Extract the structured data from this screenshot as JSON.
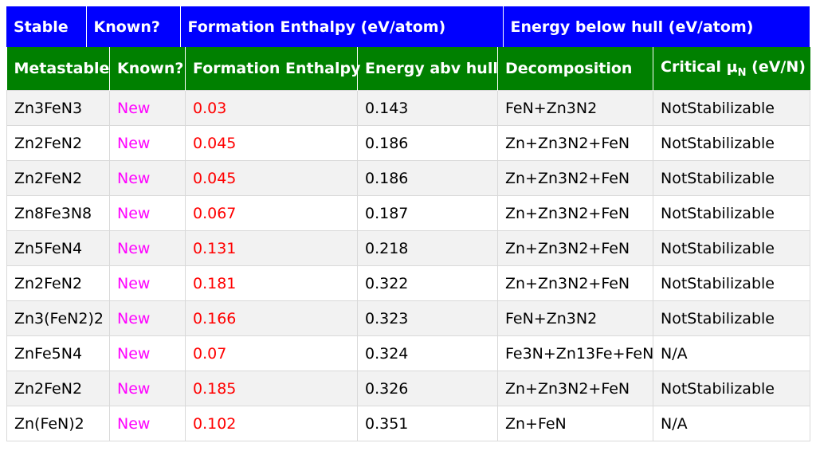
{
  "colors": {
    "header_top": "#0000ff",
    "header_sub": "#008000",
    "known_new": "#ff00ff",
    "enthalpy": "#ff0000"
  },
  "top_header": [
    "Stable",
    "Known?",
    "Formation Enthalpy (eV/atom)",
    "Energy below hull (eV/atom)"
  ],
  "sub_header": {
    "metastable": "Metastable",
    "known": "Known?",
    "formation": "Formation Enthalpy",
    "energy": "Energy abv hull",
    "decomposition": "Decomposition",
    "critical_prefix": "Critical μ",
    "critical_sub": "N",
    "critical_suffix": " (eV/N)"
  },
  "rows": [
    {
      "formula": "Zn3FeN3",
      "known": "New",
      "enthalpy": "0.03",
      "hull": "0.143",
      "decomposition": "FeN+Zn3N2",
      "critical": "NotStabilizable"
    },
    {
      "formula": "Zn2FeN2",
      "known": "New",
      "enthalpy": "0.045",
      "hull": "0.186",
      "decomposition": "Zn+Zn3N2+FeN",
      "critical": "NotStabilizable"
    },
    {
      "formula": "Zn2FeN2",
      "known": "New",
      "enthalpy": "0.045",
      "hull": "0.186",
      "decomposition": "Zn+Zn3N2+FeN",
      "critical": "NotStabilizable"
    },
    {
      "formula": "Zn8Fe3N8",
      "known": "New",
      "enthalpy": "0.067",
      "hull": "0.187",
      "decomposition": "Zn+Zn3N2+FeN",
      "critical": "NotStabilizable"
    },
    {
      "formula": "Zn5FeN4",
      "known": "New",
      "enthalpy": "0.131",
      "hull": "0.218",
      "decomposition": "Zn+Zn3N2+FeN",
      "critical": "NotStabilizable"
    },
    {
      "formula": "Zn2FeN2",
      "known": "New",
      "enthalpy": "0.181",
      "hull": "0.322",
      "decomposition": "Zn+Zn3N2+FeN",
      "critical": "NotStabilizable"
    },
    {
      "formula": "Zn3(FeN2)2",
      "known": "New",
      "enthalpy": "0.166",
      "hull": "0.323",
      "decomposition": "FeN+Zn3N2",
      "critical": "NotStabilizable"
    },
    {
      "formula": "ZnFe5N4",
      "known": "New",
      "enthalpy": "0.07",
      "hull": "0.324",
      "decomposition": "Fe3N+Zn13Fe+FeN",
      "critical": "N/A"
    },
    {
      "formula": "Zn2FeN2",
      "known": "New",
      "enthalpy": "0.185",
      "hull": "0.326",
      "decomposition": "Zn+Zn3N2+FeN",
      "critical": "NotStabilizable"
    },
    {
      "formula": "Zn(FeN)2",
      "known": "New",
      "enthalpy": "0.102",
      "hull": "0.351",
      "decomposition": "Zn+FeN",
      "critical": "N/A"
    }
  ]
}
